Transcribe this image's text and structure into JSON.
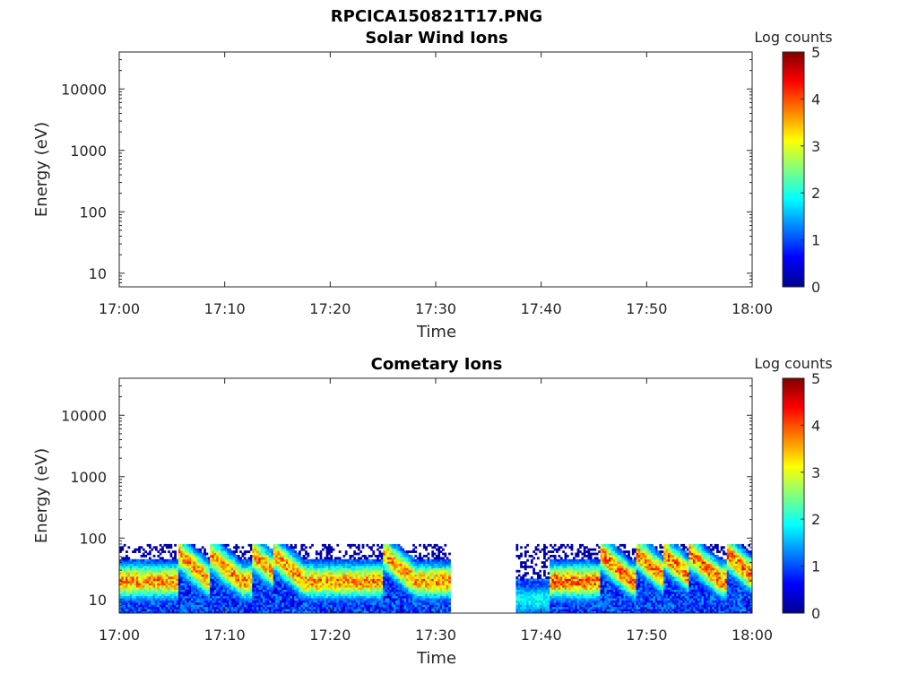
{
  "figure_title": "RPCICA150821T17.PNG",
  "chart_data": [
    {
      "type": "heatmap",
      "title": "Solar Wind Ions",
      "xlabel": "Time",
      "ylabel": "Energy (eV)",
      "x_ticks": [
        "17:00",
        "17:10",
        "17:20",
        "17:30",
        "17:40",
        "17:50",
        "18:00"
      ],
      "xlim_minutes": [
        0,
        60
      ],
      "y_scale": "log",
      "y_ticks": [
        "10",
        "100",
        "1000",
        "10000"
      ],
      "ylim": [
        6,
        40000
      ],
      "colorbar": {
        "label": "Log counts",
        "ticks": [
          "0",
          "1",
          "2",
          "3",
          "4",
          "5"
        ],
        "range": [
          0,
          5
        ],
        "colormap": "jet"
      },
      "data_description": "",
      "segments": []
    },
    {
      "type": "heatmap",
      "title": "Cometary Ions",
      "xlabel": "Time",
      "ylabel": "Energy (eV)",
      "x_ticks": [
        "17:00",
        "17:10",
        "17:20",
        "17:30",
        "17:40",
        "17:50",
        "18:00"
      ],
      "xlim_minutes": [
        0,
        60
      ],
      "y_scale": "log",
      "y_ticks": [
        "10",
        "100",
        "1000",
        "10000"
      ],
      "ylim": [
        6,
        40000
      ],
      "colorbar": {
        "label": "Log counts",
        "ticks": [
          "0",
          "1",
          "2",
          "3",
          "4",
          "5"
        ],
        "range": [
          0,
          5
        ],
        "colormap": "jet"
      },
      "segments": [
        {
          "start_min": 0,
          "end_min": 31.4,
          "energy_range_eV": [
            6,
            80
          ],
          "peak_energy_eV": 20,
          "peak_log_counts": 3.8
        },
        {
          "start_min": 37.6,
          "end_min": 40.8,
          "energy_range_eV": [
            6,
            80
          ],
          "peak_energy_eV": 10,
          "peak_log_counts": 2.0
        },
        {
          "start_min": 40.8,
          "end_min": 60,
          "energy_range_eV": [
            6,
            80
          ],
          "peak_energy_eV": 20,
          "peak_log_counts": 4.0
        }
      ],
      "bursts_minutes": [
        5.5,
        8.5,
        12.5,
        14.5,
        25,
        32,
        45.5,
        49,
        51.5,
        54,
        57.5
      ]
    }
  ]
}
